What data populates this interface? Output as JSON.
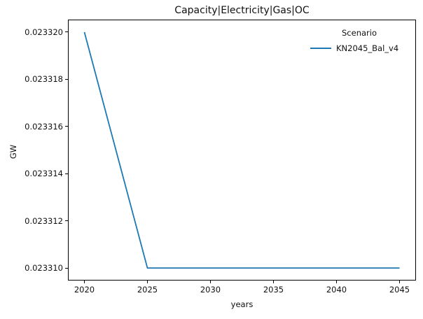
{
  "title": "Capacity|Electricity|Gas|OC",
  "legend": {
    "title": "Scenario",
    "entries": [
      {
        "label": "KN2045_Bal_v4",
        "color": "#1f77b4",
        "marker": "line"
      }
    ],
    "position": "upper right",
    "frame": false
  },
  "colors": {
    "line": "#1f77b4",
    "spine": "#000000",
    "text": "#111111",
    "background": "#ffffff"
  },
  "chart_data": {
    "type": "line",
    "title": "Capacity|Electricity|Gas|OC",
    "xlabel": "years",
    "ylabel": "GW",
    "x": [
      2020,
      2025,
      2030,
      2035,
      2040,
      2045
    ],
    "series": [
      {
        "name": "KN2045_Bal_v4",
        "color": "#1f77b4",
        "values": [
          0.02332,
          0.02331,
          0.02331,
          0.02331,
          0.02331,
          0.02331
        ]
      }
    ],
    "xlim": [
      2018.75,
      2046.25
    ],
    "ylim": [
      0.0233095,
      0.0233205
    ],
    "xticks": {
      "values": [
        2020,
        2025,
        2030,
        2035,
        2040,
        2045
      ],
      "labels": [
        "2020",
        "2025",
        "2030",
        "2035",
        "2040",
        "2045"
      ]
    },
    "yticks": {
      "values": [
        0.02331,
        0.023312,
        0.023314,
        0.023316,
        0.023318,
        0.02332
      ],
      "labels": [
        "0.023310",
        "0.023312",
        "0.023314",
        "0.023316",
        "0.023318",
        "0.023320"
      ]
    },
    "grid": false,
    "legend_position": "upper right"
  }
}
